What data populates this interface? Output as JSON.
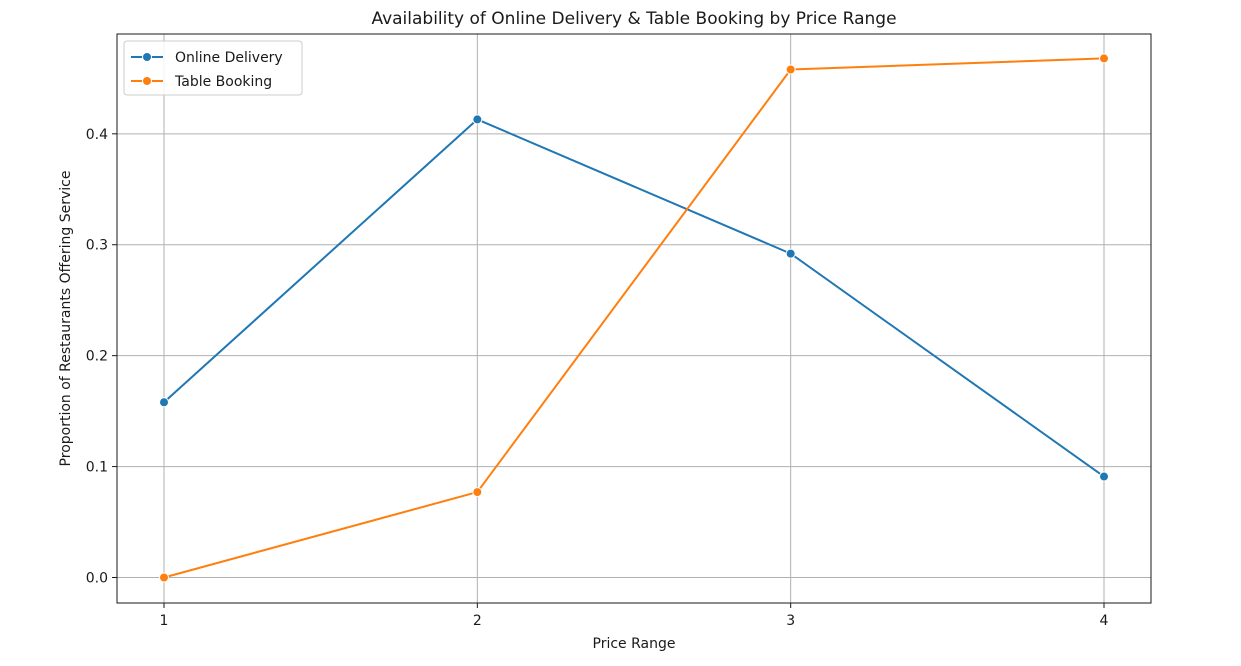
{
  "chart_data": {
    "type": "line",
    "title": "Availability of Online Delivery & Table Booking by Price Range",
    "xlabel": "Price Range",
    "ylabel": "Proportion of Restaurants Offering Service",
    "x": [
      1,
      2,
      3,
      4
    ],
    "xticks": [
      "1",
      "2",
      "3",
      "4"
    ],
    "xlim": [
      0.85,
      4.15
    ],
    "yticks": [
      "0.0",
      "0.1",
      "0.2",
      "0.3",
      "0.4"
    ],
    "ylim": [
      -0.023,
      0.49
    ],
    "grid": true,
    "legend_position": "top-left",
    "series": [
      {
        "name": "Online Delivery",
        "color": "#1f77b4",
        "marker": "circle",
        "values": [
          0.158,
          0.413,
          0.292,
          0.091
        ]
      },
      {
        "name": "Table Booking",
        "color": "#ff7f0e",
        "marker": "circle",
        "values": [
          0.0,
          0.077,
          0.458,
          0.468
        ]
      }
    ]
  }
}
